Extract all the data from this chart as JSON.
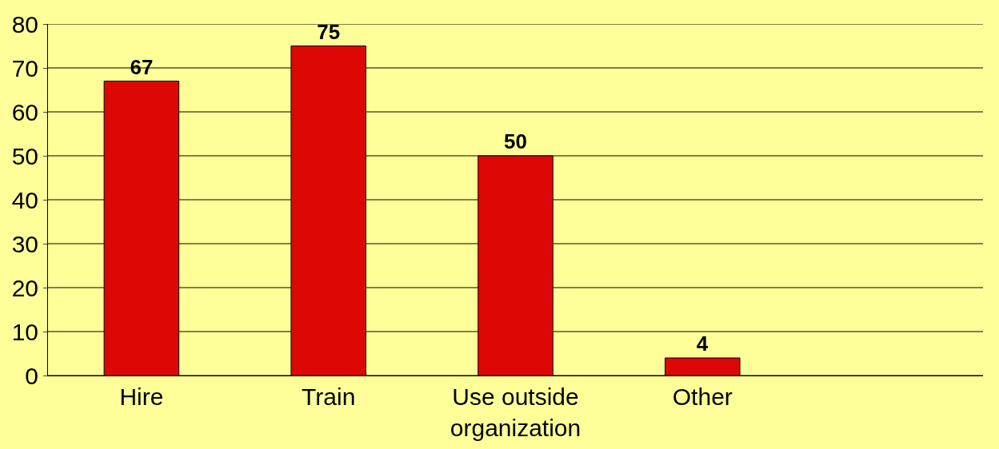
{
  "chart_data": {
    "type": "bar",
    "categories": [
      "Hire",
      "Train",
      "Use outside organization",
      "Other",
      null
    ],
    "values": [
      67,
      75,
      50,
      4,
      null
    ],
    "color": "#dd0806",
    "ylim": [
      0,
      80
    ],
    "yticks": [
      0,
      10,
      20,
      30,
      40,
      50,
      60,
      70,
      80
    ],
    "grid": "y",
    "data_labels": true
  }
}
